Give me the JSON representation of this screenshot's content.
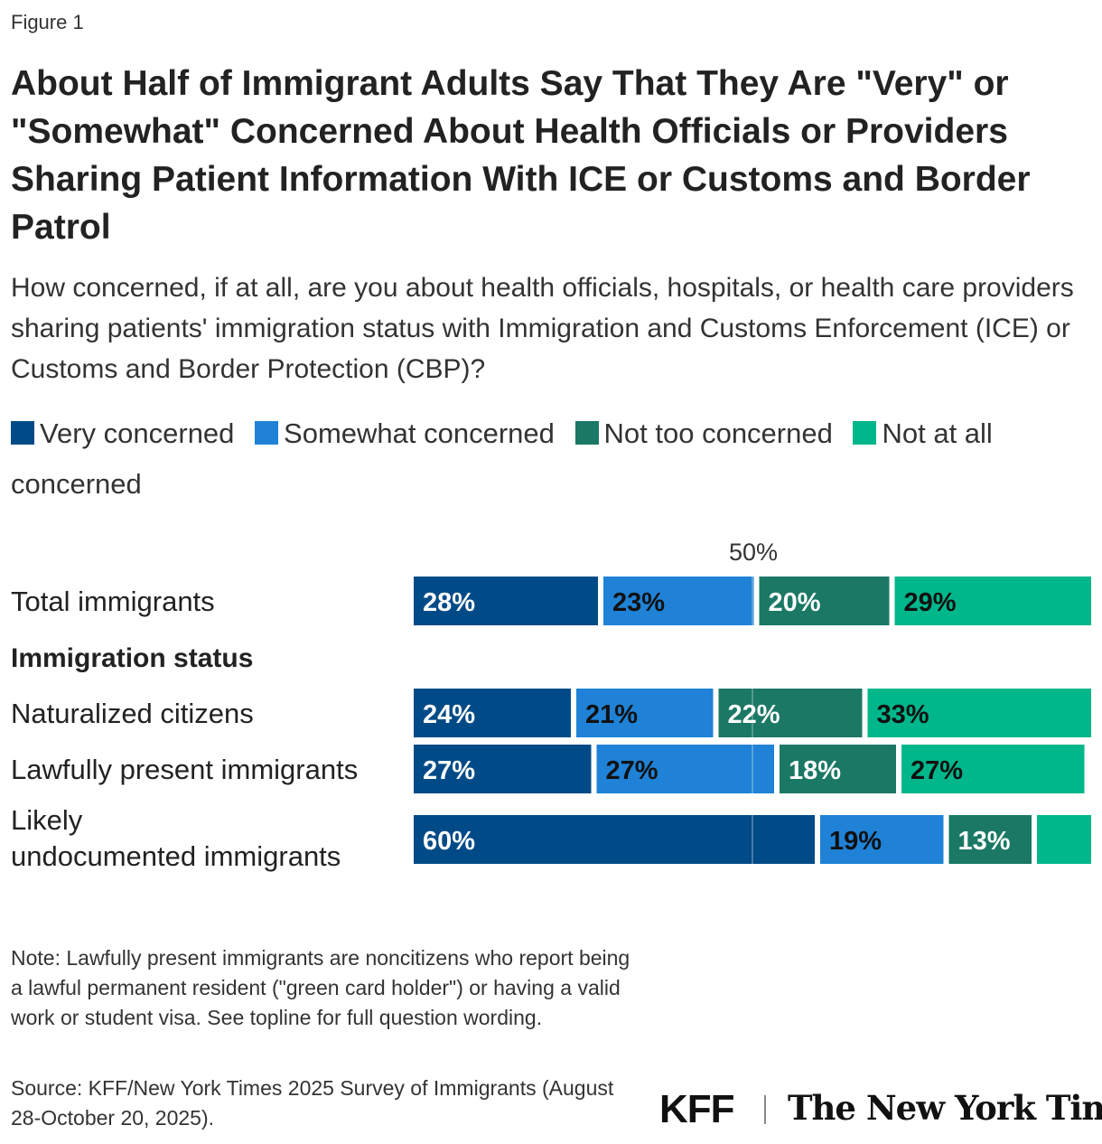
{
  "figure_label": "Figure 1",
  "title": "About Half of Immigrant Adults Say That They Are \"Very\" or \"Somewhat\" Concerned About Health Officials or Providers Sharing Patient Information With ICE or Customs and Border Patrol",
  "subtitle": "How concerned, if at all, are you about health officials, hospitals, or health care providers sharing patients' immigration status with Immigration and Customs Enforcement (ICE) or Customs and Border Protection (CBP)?",
  "legend": [
    {
      "label": "Very concerned",
      "color": "#004b87"
    },
    {
      "label": "Somewhat concerned",
      "color": "#1f82d6"
    },
    {
      "label": "Not too concerned",
      "color": "#1a7865"
    },
    {
      "label": "Not at all concerned",
      "color": "#00b68b"
    }
  ],
  "chart_data": {
    "type": "bar",
    "orientation": "horizontal",
    "stacked": true,
    "reference_line": {
      "value": 50,
      "label": "50%"
    },
    "section_header": "Immigration status",
    "categories": [
      "Total immigrants",
      "Naturalized citizens",
      "Lawfully present immigrants",
      "Likely undocumented immigrants"
    ],
    "category_lines": [
      [
        "Total immigrants"
      ],
      [
        "Naturalized citizens"
      ],
      [
        "Lawfully present immigrants"
      ],
      [
        "Likely",
        "undocumented immigrants"
      ]
    ],
    "series": [
      {
        "name": "Very concerned",
        "color": "#004b87",
        "label_color": "#ffffff",
        "values": [
          28,
          24,
          27,
          60
        ]
      },
      {
        "name": "Somewhat concerned",
        "color": "#1f82d6",
        "label_color": "#111111",
        "values": [
          23,
          21,
          27,
          19
        ]
      },
      {
        "name": "Not too concerned",
        "color": "#1a7865",
        "label_color": "#ffffff",
        "values": [
          20,
          22,
          18,
          13
        ]
      },
      {
        "name": "Not at all concerned",
        "color": "#00b68b",
        "label_color": "#111111",
        "values": [
          29,
          33,
          27,
          8
        ]
      }
    ],
    "data_labels": [
      [
        "28%",
        "23%",
        "20%",
        "29%"
      ],
      [
        "24%",
        "21%",
        "22%",
        "33%"
      ],
      [
        "27%",
        "27%",
        "18%",
        "27%"
      ],
      [
        "60%",
        "19%",
        "13%",
        ""
      ]
    ],
    "xlim": [
      0,
      100
    ]
  },
  "note": "Note: Lawfully present immigrants are noncitizens who report being a lawful permanent resident (\"green card holder\") or having a valid work or student visa. See topline for full question wording.",
  "source": "Source: KFF/New York Times 2025 Survey of Immigrants (August 28-October 20, 2025).",
  "logos": {
    "kff": "KFF",
    "nyt": "The New York Times"
  }
}
